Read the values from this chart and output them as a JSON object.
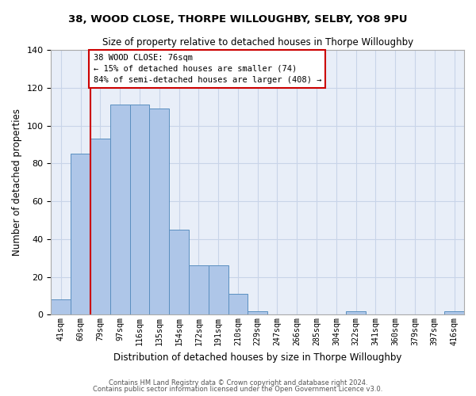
{
  "title": "38, WOOD CLOSE, THORPE WILLOUGHBY, SELBY, YO8 9PU",
  "subtitle": "Size of property relative to detached houses in Thorpe Willoughby",
  "xlabel": "Distribution of detached houses by size in Thorpe Willoughby",
  "ylabel": "Number of detached properties",
  "bin_labels": [
    "41sqm",
    "60sqm",
    "79sqm",
    "97sqm",
    "116sqm",
    "135sqm",
    "154sqm",
    "172sqm",
    "191sqm",
    "210sqm",
    "229sqm",
    "247sqm",
    "266sqm",
    "285sqm",
    "304sqm",
    "322sqm",
    "341sqm",
    "360sqm",
    "379sqm",
    "397sqm",
    "416sqm"
  ],
  "bar_values": [
    8,
    85,
    93,
    111,
    111,
    109,
    45,
    26,
    26,
    11,
    2,
    0,
    0,
    0,
    0,
    2,
    0,
    0,
    0,
    0,
    2
  ],
  "bar_color": "#aec6e8",
  "bar_edge_color": "#5a8fc0",
  "grid_color": "#c8d4e8",
  "background_color": "#e8eef8",
  "vline_color": "#cc0000",
  "annotation_text": "38 WOOD CLOSE: 76sqm\n← 15% of detached houses are smaller (74)\n84% of semi-detached houses are larger (408) →",
  "annotation_box_color": "#ffffff",
  "annotation_box_edge_color": "#cc0000",
  "ylim": [
    0,
    140
  ],
  "yticks": [
    0,
    20,
    40,
    60,
    80,
    100,
    120,
    140
  ],
  "footer1": "Contains HM Land Registry data © Crown copyright and database right 2024.",
  "footer2": "Contains public sector information licensed under the Open Government Licence v3.0."
}
